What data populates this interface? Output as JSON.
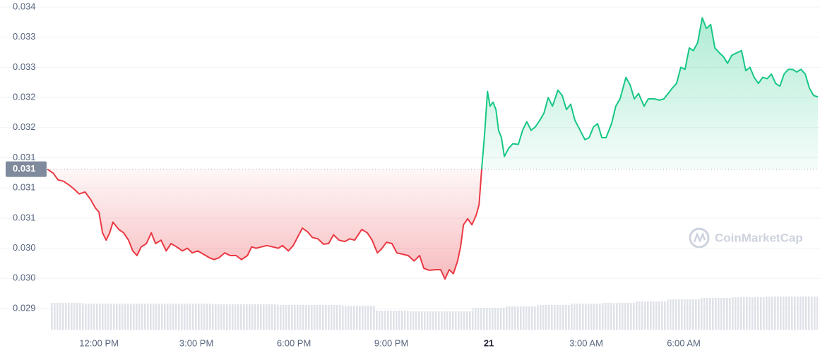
{
  "chart_data": {
    "type": "line",
    "x": [
      10.41,
      10.59,
      10.74,
      10.91,
      11.09,
      11.24,
      11.39,
      11.57,
      11.74,
      11.89,
      12.0,
      12.11,
      12.22,
      12.33,
      12.43,
      12.61,
      12.76,
      12.91,
      13.04,
      13.17,
      13.3,
      13.46,
      13.61,
      13.74,
      13.91,
      14.07,
      14.22,
      14.39,
      14.57,
      14.72,
      14.87,
      15.04,
      15.22,
      15.39,
      15.54,
      15.7,
      15.87,
      16.04,
      16.22,
      16.39,
      16.57,
      16.7,
      16.83,
      17.0,
      17.17,
      17.35,
      17.52,
      17.65,
      17.83,
      17.98,
      18.13,
      18.26,
      18.41,
      18.57,
      18.74,
      18.91,
      19.07,
      19.22,
      19.39,
      19.57,
      19.72,
      19.87,
      20.09,
      20.26,
      20.41,
      20.57,
      20.7,
      20.85,
      21.02,
      21.17,
      21.35,
      21.52,
      21.7,
      21.87,
      22.0,
      22.17,
      22.35,
      22.52,
      22.65,
      22.78,
      22.91,
      23.04,
      23.13,
      23.22,
      23.35,
      23.48,
      23.61,
      23.7,
      23.78,
      23.87,
      23.96,
      24.04,
      24.13,
      24.22,
      24.3,
      24.39,
      24.48,
      24.61,
      24.74,
      24.91,
      25.04,
      25.17,
      25.3,
      25.43,
      25.57,
      25.7,
      25.83,
      25.96,
      26.13,
      26.26,
      26.39,
      26.52,
      26.65,
      26.78,
      26.96,
      27.09,
      27.22,
      27.35,
      27.48,
      27.61,
      27.78,
      27.91,
      28.04,
      28.22,
      28.35,
      28.48,
      28.61,
      28.78,
      28.91,
      29.09,
      29.26,
      29.39,
      29.52,
      29.65,
      29.78,
      29.91,
      30.04,
      30.17,
      30.3,
      30.43,
      30.57,
      30.7,
      30.83,
      30.96,
      31.09,
      31.22,
      31.35,
      31.48,
      31.65,
      31.78,
      31.91,
      32.04,
      32.17,
      32.3,
      32.43,
      32.57,
      32.7,
      32.83,
      32.96,
      33.09,
      33.22,
      33.35,
      33.48,
      33.61,
      33.74,
      33.87,
      34.0,
      34.13
    ],
    "values": [
      0.03128,
      0.03122,
      0.03112,
      0.0311,
      0.03104,
      0.03098,
      0.03091,
      0.03094,
      0.03083,
      0.0307,
      0.03064,
      0.03033,
      0.03022,
      0.03033,
      0.03049,
      0.03038,
      0.03033,
      0.03022,
      0.03006,
      0.02999,
      0.03012,
      0.03017,
      0.03033,
      0.03017,
      0.03022,
      0.03006,
      0.03017,
      0.03012,
      0.03006,
      0.0301,
      0.03003,
      0.03006,
      0.03001,
      0.02996,
      0.02993,
      0.02996,
      0.03003,
      0.02999,
      0.02999,
      0.02993,
      0.02999,
      0.03012,
      0.0301,
      0.03012,
      0.03014,
      0.03012,
      0.0301,
      0.03014,
      0.03006,
      0.03014,
      0.03028,
      0.0304,
      0.03035,
      0.03026,
      0.03024,
      0.03016,
      0.03017,
      0.0303,
      0.03022,
      0.0302,
      0.03024,
      0.03022,
      0.03038,
      0.03033,
      0.03022,
      0.03003,
      0.03009,
      0.03019,
      0.03017,
      0.03003,
      0.03001,
      0.02999,
      0.02991,
      0.02999,
      0.0298,
      0.02977,
      0.02978,
      0.02978,
      0.02964,
      0.02978,
      0.02972,
      0.02991,
      0.03012,
      0.03045,
      0.03054,
      0.03045,
      0.03059,
      0.03075,
      0.03128,
      0.0318,
      0.03244,
      0.03222,
      0.03228,
      0.03217,
      0.03186,
      0.03175,
      0.03147,
      0.03159,
      0.03166,
      0.03165,
      0.03186,
      0.03199,
      0.03186,
      0.03191,
      0.03201,
      0.03212,
      0.03235,
      0.03222,
      0.03246,
      0.03238,
      0.03217,
      0.03225,
      0.03201,
      0.03189,
      0.03172,
      0.03175,
      0.03191,
      0.03196,
      0.03175,
      0.03175,
      0.03196,
      0.03222,
      0.03233,
      0.03265,
      0.03254,
      0.03233,
      0.03241,
      0.03222,
      0.03233,
      0.03233,
      0.03231,
      0.03233,
      0.03241,
      0.03249,
      0.03256,
      0.0328,
      0.03277,
      0.03309,
      0.03305,
      0.03317,
      0.03354,
      0.03338,
      0.03344,
      0.03309,
      0.03302,
      0.03296,
      0.03286,
      0.03298,
      0.03302,
      0.03305,
      0.03275,
      0.0328,
      0.03265,
      0.03256,
      0.03265,
      0.03263,
      0.0327,
      0.03256,
      0.03252,
      0.0327,
      0.03277,
      0.03277,
      0.03273,
      0.03277,
      0.0327,
      0.03249,
      0.03238,
      0.03236
    ],
    "up_color": "#16c784",
    "down_color": "#ea3943",
    "baseline": {
      "value": 0.03128,
      "label": "0.031"
    },
    "xlim": [
      10.41,
      34.13
    ],
    "ylim": [
      0.0292,
      0.0337
    ],
    "yticks": [
      {
        "value": 0.0292,
        "label": "0.029"
      },
      {
        "value": 0.02965,
        "label": "0.030"
      },
      {
        "value": 0.0301,
        "label": "0.030"
      },
      {
        "value": 0.03055,
        "label": "0.031"
      },
      {
        "value": 0.031,
        "label": "0.031"
      },
      {
        "value": 0.03145,
        "label": "0.031"
      },
      {
        "value": 0.0319,
        "label": "0.032"
      },
      {
        "value": 0.03235,
        "label": "0.032"
      },
      {
        "value": 0.0328,
        "label": "0.033"
      },
      {
        "value": 0.03325,
        "label": "0.033"
      },
      {
        "value": 0.0337,
        "label": "0.034"
      }
    ],
    "xticks": [
      {
        "value": 12,
        "label": "12:00 PM"
      },
      {
        "value": 15,
        "label": "3:00 PM"
      },
      {
        "value": 18,
        "label": "6:00 PM"
      },
      {
        "value": 21,
        "label": "9:00 PM"
      },
      {
        "value": 24,
        "label": "21"
      },
      {
        "value": 27,
        "label": "3:00 AM"
      },
      {
        "value": 30,
        "label": "6:00 AM"
      }
    ],
    "grid": true,
    "volume": {
      "x": [
        11,
        12,
        13,
        14,
        15,
        16,
        17,
        18,
        19,
        20,
        21,
        22,
        23,
        24,
        25,
        26,
        27,
        28,
        29,
        30,
        31,
        32,
        33,
        34
      ],
      "values": [
        38,
        37,
        37,
        37,
        37,
        36,
        36,
        35,
        35,
        34,
        27,
        26,
        26,
        31,
        33,
        35,
        37,
        38,
        40,
        43,
        45,
        46,
        47,
        47
      ],
      "color": "#dfe2e8"
    },
    "watermark": "CoinMarketCap"
  }
}
